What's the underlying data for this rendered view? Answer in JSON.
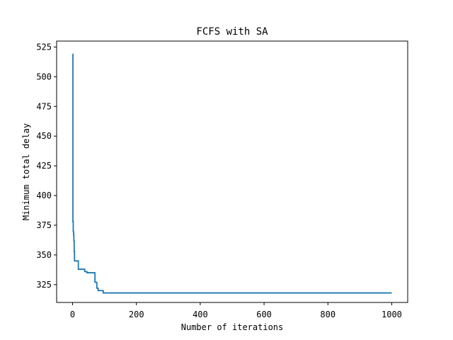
{
  "chart_data": {
    "type": "line",
    "title": "FCFS with SA",
    "xlabel": "Number of iterations",
    "ylabel": "Minimum total delay",
    "xlim": [
      -50,
      1050
    ],
    "ylim": [
      310,
      530
    ],
    "x_ticks": [
      0,
      200,
      400,
      600,
      800,
      1000
    ],
    "y_ticks": [
      325,
      350,
      375,
      400,
      425,
      450,
      475,
      500,
      525
    ],
    "grid": false,
    "legend": "none",
    "line_color": "#1f77b4",
    "series": [
      {
        "drawstyle": "steps-post",
        "x": [
          0,
          1,
          2,
          3,
          4,
          5,
          6,
          10,
          18,
          30,
          38,
          45,
          66,
          70,
          76,
          80,
          90,
          96,
          1000
        ],
        "y": [
          519,
          378,
          370,
          367,
          362,
          353,
          345,
          345,
          338,
          338,
          336,
          335,
          335,
          327,
          322,
          320,
          320,
          318,
          318
        ]
      }
    ]
  }
}
